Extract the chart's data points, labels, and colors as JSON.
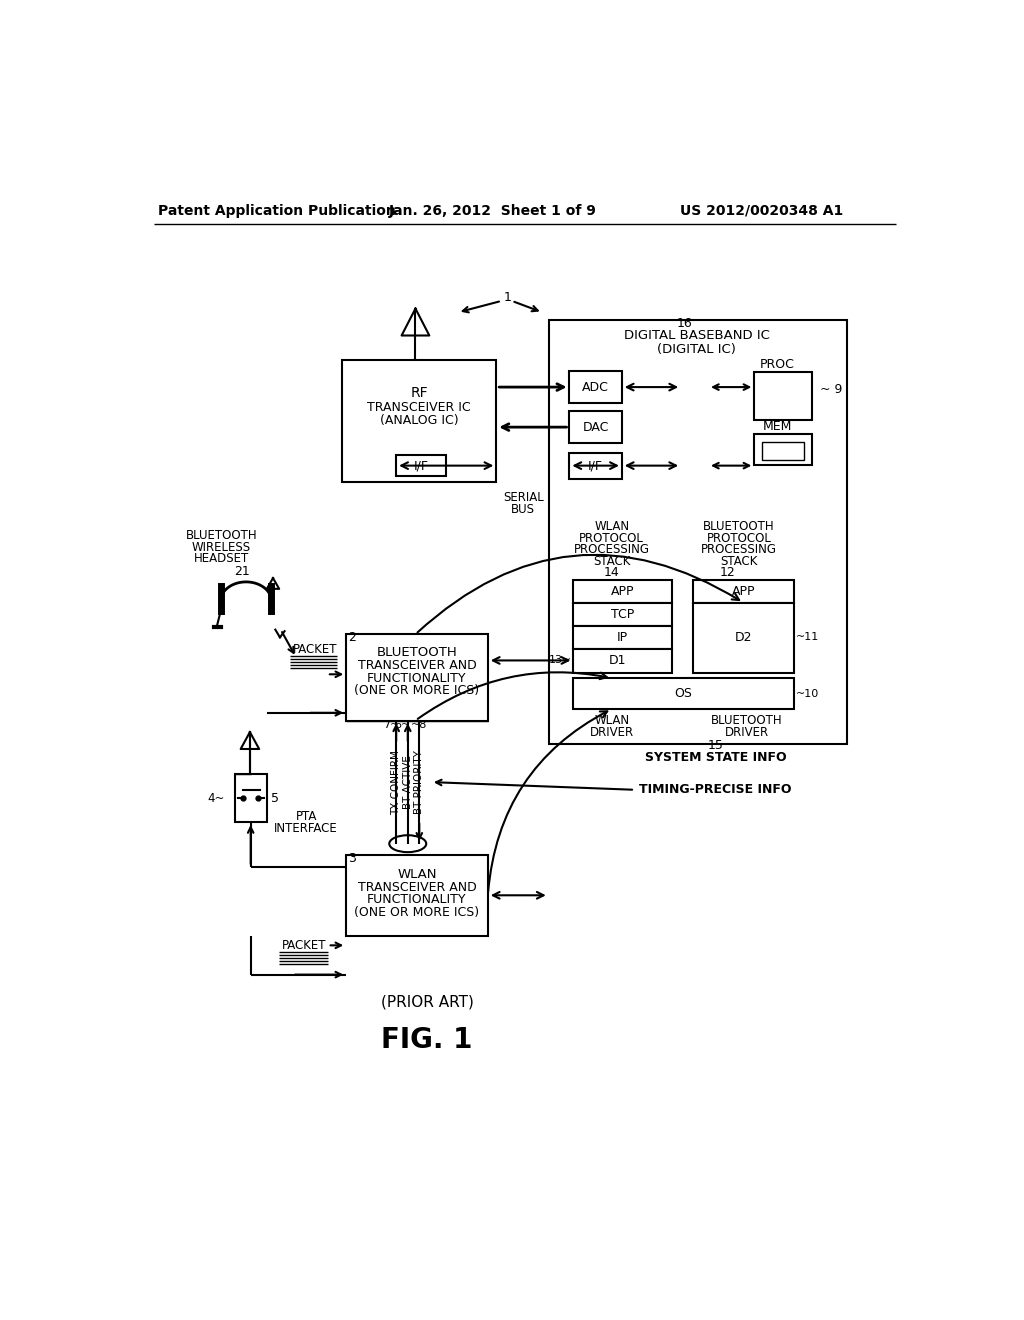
{
  "header_left": "Patent Application Publication",
  "header_center": "Jan. 26, 2012  Sheet 1 of 9",
  "header_right": "US 2012/0020348 A1",
  "figure_label": "FIG. 1",
  "prior_art": "(PRIOR ART)",
  "bg_color": "#ffffff"
}
